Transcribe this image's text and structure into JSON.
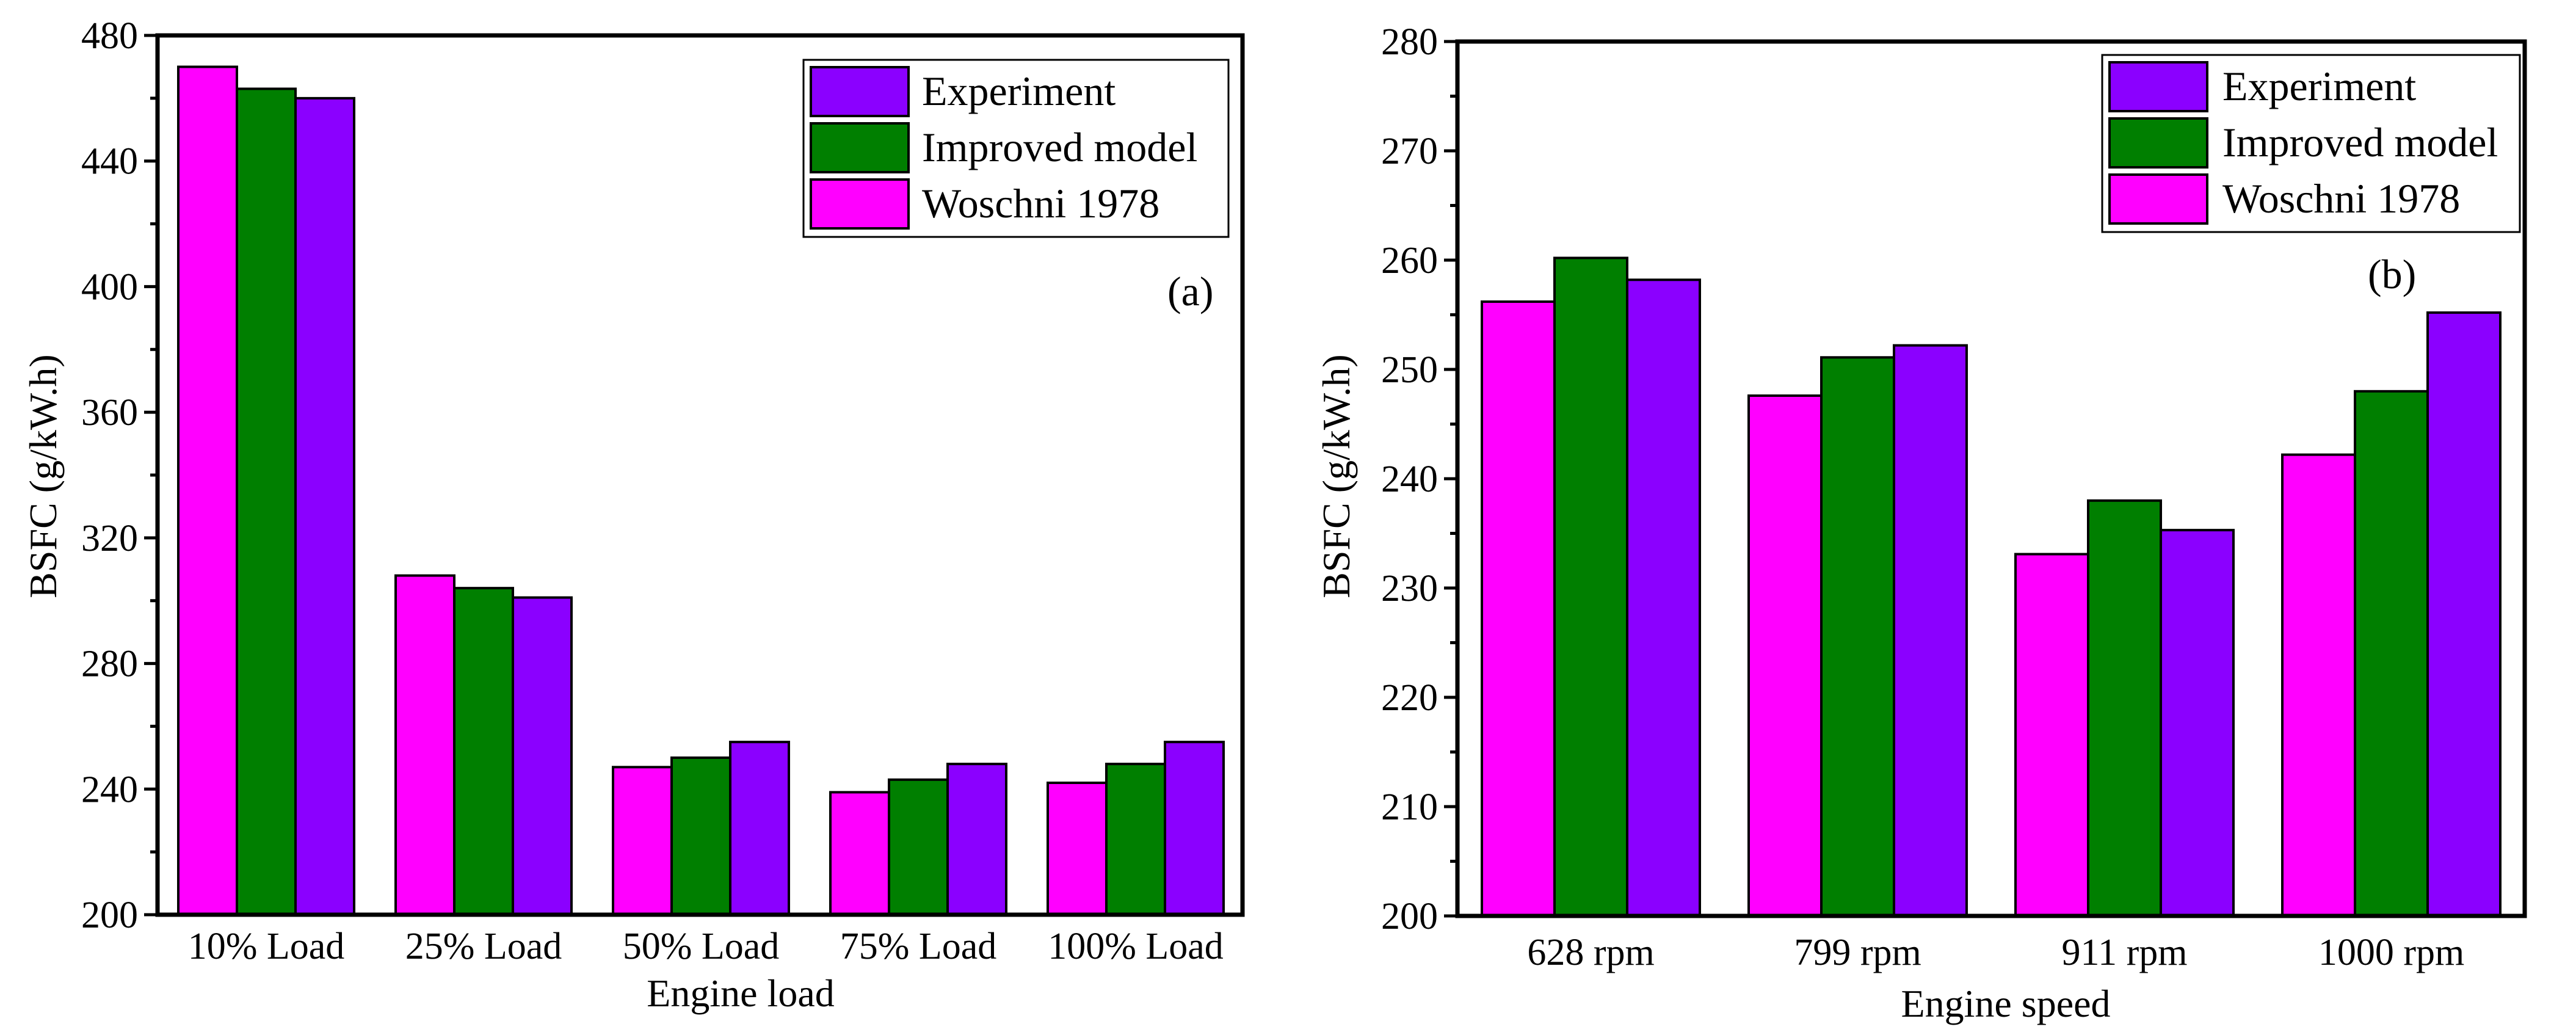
{
  "colors": {
    "experiment": "#8B00FF",
    "improved_model": "#007F00",
    "woschni": "#FF00FF",
    "axis": "#000000"
  },
  "chart_data": [
    {
      "type": "bar",
      "panel_label": "(a)",
      "xlabel": "Engine load",
      "ylabel": "BSFC (g/kW.h)",
      "ylim": [
        200,
        480
      ],
      "yticks": [
        "200",
        "240",
        "280",
        "320",
        "360",
        "400",
        "440",
        "480"
      ],
      "categories": [
        "10% Load",
        "25% Load",
        "50% Load",
        "75% Load",
        "100% Load"
      ],
      "legend": [
        "Experiment",
        "Improved model",
        "Woschni 1978"
      ],
      "series": [
        {
          "name": "Woschni 1978",
          "values": [
            470,
            308,
            247,
            239,
            242
          ]
        },
        {
          "name": "Improved model",
          "values": [
            463,
            304,
            250,
            243,
            248
          ]
        },
        {
          "name": "Experiment",
          "values": [
            460,
            301,
            255,
            248,
            255
          ]
        }
      ]
    },
    {
      "type": "bar",
      "panel_label": "(b)",
      "xlabel": "Engine speed",
      "ylabel": "BSFC (g/kW.h)",
      "ylim": [
        200,
        280
      ],
      "yticks": [
        "200",
        "210",
        "220",
        "230",
        "240",
        "250",
        "260",
        "270",
        "280"
      ],
      "categories": [
        "628 rpm",
        "799 rpm",
        "911 rpm",
        "1000 rpm"
      ],
      "legend": [
        "Experiment",
        "Improved model",
        "Woschni 1978"
      ],
      "series": [
        {
          "name": "Woschni 1978",
          "values": [
            256.2,
            247.6,
            233.1,
            242.2
          ]
        },
        {
          "name": "Improved model",
          "values": [
            260.2,
            251.1,
            238.0,
            248.0
          ]
        },
        {
          "name": "Experiment",
          "values": [
            258.2,
            252.2,
            235.3,
            255.2
          ]
        }
      ]
    }
  ]
}
